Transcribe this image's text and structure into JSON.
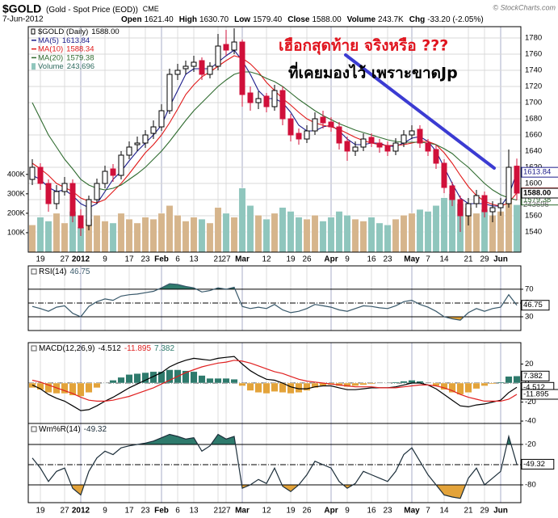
{
  "header": {
    "symbol": "$GOLD",
    "name": "(Gold - Spot Price (EOD))",
    "exchange": "CME",
    "date": "7-Jun-2012",
    "quote": [
      {
        "label": "Open",
        "value": "1621.40"
      },
      {
        "label": "High",
        "value": "1630.70"
      },
      {
        "label": "Low",
        "value": "1579.40"
      },
      {
        "label": "Close",
        "value": "1588.00"
      },
      {
        "label": "Volume",
        "value": "243.7K"
      },
      {
        "label": "Chg",
        "value": "-33.20 (-2.05%)"
      }
    ],
    "credit": "© StockCharts.com"
  },
  "annotations": [
    "เฮือกสุดท้าย จริงหรือ ???",
    "ที่เคยมองไว้ เพราะขาดJp"
  ],
  "chart_data": [
    {
      "type": "candlestick",
      "name": "$GOLD (Daily)",
      "last_label": "1588.00",
      "categories": [
        null,
        "19",
        null,
        null,
        "27",
        null,
        "2012",
        null,
        null,
        "9",
        null,
        null,
        "17",
        null,
        "23",
        null,
        "Feb",
        null,
        "6",
        null,
        "13",
        null,
        null,
        "21",
        "27",
        null,
        "Mar",
        null,
        null,
        "12",
        null,
        null,
        "19",
        null,
        "26",
        null,
        null,
        "Apr",
        null,
        "9",
        null,
        null,
        "16",
        null,
        "23",
        null,
        null,
        "May",
        null,
        "7",
        null,
        "14",
        null,
        null,
        "21",
        null,
        "29",
        null,
        "Jun",
        null,
        null
      ],
      "open": [
        1605,
        1620,
        1600,
        1575,
        1590,
        1600,
        1560,
        1548,
        1580,
        1600,
        1618,
        1610,
        1635,
        1648,
        1650,
        1662,
        1670,
        1690,
        1735,
        1742,
        1745,
        1752,
        1735,
        1745,
        1772,
        1765,
        1775,
        1712,
        1700,
        1708,
        1695,
        1715,
        1680,
        1662,
        1655,
        1665,
        1682,
        1676,
        1670,
        1652,
        1640,
        1645,
        1657,
        1650,
        1647,
        1640,
        1650,
        1660,
        1667,
        1650,
        1642,
        1625,
        1597,
        1580,
        1560,
        1575,
        1585,
        1565,
        1570,
        1575,
        1621.4
      ],
      "high": [
        1630,
        1625,
        1605,
        1598,
        1608,
        1605,
        1568,
        1585,
        1606,
        1622,
        1624,
        1640,
        1652,
        1658,
        1666,
        1678,
        1698,
        1742,
        1748,
        1752,
        1758,
        1756,
        1750,
        1785,
        1790,
        1792,
        1778,
        1720,
        1714,
        1712,
        1722,
        1720,
        1686,
        1668,
        1672,
        1688,
        1690,
        1682,
        1676,
        1658,
        1652,
        1662,
        1662,
        1655,
        1652,
        1656,
        1666,
        1672,
        1672,
        1655,
        1648,
        1630,
        1602,
        1585,
        1582,
        1592,
        1590,
        1578,
        1582,
        1642,
        1630.7
      ],
      "low": [
        1598,
        1592,
        1565,
        1568,
        1585,
        1552,
        1535,
        1542,
        1575,
        1594,
        1602,
        1605,
        1630,
        1640,
        1644,
        1655,
        1665,
        1686,
        1728,
        1735,
        1738,
        1728,
        1730,
        1740,
        1758,
        1760,
        1695,
        1690,
        1692,
        1688,
        1690,
        1672,
        1652,
        1648,
        1650,
        1660,
        1668,
        1664,
        1642,
        1628,
        1634,
        1640,
        1645,
        1638,
        1634,
        1635,
        1645,
        1655,
        1644,
        1634,
        1618,
        1588,
        1572,
        1540,
        1548,
        1570,
        1558,
        1552,
        1560,
        1570,
        1579.4
      ],
      "close": [
        1620,
        1600,
        1575,
        1590,
        1600,
        1560,
        1545,
        1580,
        1600,
        1615,
        1610,
        1635,
        1645,
        1650,
        1660,
        1670,
        1690,
        1735,
        1740,
        1745,
        1750,
        1735,
        1745,
        1770,
        1765,
        1775,
        1710,
        1700,
        1705,
        1695,
        1715,
        1680,
        1660,
        1655,
        1665,
        1680,
        1675,
        1670,
        1650,
        1640,
        1645,
        1655,
        1650,
        1645,
        1640,
        1650,
        1660,
        1665,
        1650,
        1640,
        1625,
        1595,
        1580,
        1560,
        1575,
        1585,
        1565,
        1570,
        1575,
        1620,
        1588
      ],
      "colors": {
        "up": "#000000",
        "down": "#d0103a"
      },
      "ylim": [
        1515,
        1794
      ],
      "yticks": [
        1540,
        1560,
        1580,
        1600,
        1620,
        1640,
        1660,
        1680,
        1700,
        1720,
        1740,
        1760,
        1780
      ],
      "grid": true,
      "overlays": [
        {
          "name": "MA(5)",
          "color": "#1c1c8a",
          "values": [
            1610,
            1605,
            1595,
            1590,
            1592,
            1585,
            1575,
            1570,
            1575,
            1590,
            1605,
            1615,
            1628,
            1640,
            1650,
            1660,
            1672,
            1695,
            1715,
            1735,
            1742,
            1742,
            1742,
            1750,
            1758,
            1765,
            1752,
            1735,
            1715,
            1705,
            1705,
            1700,
            1688,
            1672,
            1665,
            1665,
            1670,
            1672,
            1665,
            1655,
            1648,
            1648,
            1650,
            1650,
            1646,
            1646,
            1650,
            1656,
            1658,
            1652,
            1640,
            1620,
            1600,
            1582,
            1575,
            1575,
            1575,
            1572,
            1572,
            1585,
            1613.84
          ]
        },
        {
          "name": "MA(10)",
          "color": "#e01818",
          "values": [
            1625,
            1618,
            1610,
            1600,
            1595,
            1590,
            1582,
            1578,
            1576,
            1580,
            1590,
            1600,
            1612,
            1625,
            1638,
            1648,
            1660,
            1675,
            1692,
            1710,
            1722,
            1732,
            1738,
            1745,
            1752,
            1758,
            1755,
            1748,
            1738,
            1725,
            1715,
            1705,
            1697,
            1688,
            1680,
            1675,
            1672,
            1670,
            1667,
            1662,
            1657,
            1653,
            1650,
            1648,
            1647,
            1647,
            1648,
            1650,
            1652,
            1652,
            1648,
            1638,
            1625,
            1610,
            1596,
            1585,
            1578,
            1574,
            1572,
            1576,
            1588.34
          ]
        },
        {
          "name": "MA(20)",
          "color": "#2f6b2f",
          "values": [
            1700,
            1680,
            1660,
            1645,
            1630,
            1618,
            1605,
            1598,
            1594,
            1592,
            1594,
            1598,
            1605,
            1612,
            1620,
            1630,
            1640,
            1652,
            1665,
            1678,
            1690,
            1700,
            1710,
            1720,
            1728,
            1735,
            1738,
            1738,
            1735,
            1730,
            1726,
            1720,
            1712,
            1704,
            1697,
            1690,
            1684,
            1679,
            1674,
            1670,
            1666,
            1663,
            1660,
            1657,
            1654,
            1652,
            1651,
            1651,
            1651,
            1650,
            1648,
            1643,
            1637,
            1628,
            1620,
            1610,
            1600,
            1592,
            1586,
            1582,
            1579.38
          ]
        }
      ],
      "volume": {
        "name": "Volume",
        "last_label": "243,696",
        "colors": {
          "up": "#d6b58c",
          "down": "#8fc6bd"
        },
        "ylim": [
          0,
          1160000
        ],
        "yticks": [
          {
            "value": 100000,
            "label": "100K"
          },
          {
            "value": 200000,
            "label": "200K"
          },
          {
            "value": 300000,
            "label": "300K"
          },
          {
            "value": 400000,
            "label": "400K"
          }
        ],
        "values": [
          140000,
          180000,
          160000,
          200000,
          150000,
          210000,
          130000,
          170000,
          190000,
          160000,
          150000,
          200000,
          170000,
          150000,
          180000,
          170000,
          200000,
          240000,
          190000,
          160000,
          180000,
          170000,
          150000,
          230000,
          200000,
          180000,
          330000,
          240000,
          190000,
          170000,
          200000,
          230000,
          210000,
          180000,
          170000,
          190000,
          160000,
          180000,
          210000,
          190000,
          170000,
          160000,
          180000,
          150000,
          140000,
          170000,
          190000,
          200000,
          220000,
          210000,
          240000,
          280000,
          300000,
          250000,
          230000,
          200000,
          220000,
          190000,
          210000,
          280000,
          243696
        ]
      }
    },
    {
      "type": "line",
      "name": "RSI(14)",
      "ylim": [
        10,
        104
      ],
      "yticks": [
        70,
        50,
        30
      ],
      "bands": {
        "upper": 70,
        "lower": 30,
        "upper_color": "#2e7a6c",
        "lower_color": "#e3a33a"
      },
      "midline": 50,
      "series": [
        {
          "color": "#38586a",
          "values": [
            45,
            42,
            38,
            44,
            46,
            35,
            30,
            45,
            52,
            56,
            54,
            60,
            62,
            63,
            65,
            67,
            72,
            78,
            77,
            74,
            72,
            66,
            68,
            72,
            70,
            73,
            45,
            42,
            44,
            42,
            48,
            40,
            36,
            38,
            42,
            48,
            46,
            44,
            40,
            38,
            42,
            46,
            45,
            43,
            42,
            46,
            52,
            54,
            48,
            44,
            38,
            30,
            27,
            25,
            36,
            42,
            38,
            42,
            44,
            62,
            46.75
          ]
        }
      ]
    },
    {
      "type": "line",
      "name": "MACD(12,26,9)",
      "ylim": [
        -42.5,
        42.5
      ],
      "yticks": [
        20,
        0,
        -20,
        -40
      ],
      "midline": 0,
      "series": [
        {
          "style": "histogram",
          "color": "#2e7a6c",
          "negative_color": "#e3a33a",
          "values": [
            -5,
            -7,
            -10,
            -11,
            -11,
            -13,
            -14,
            -10,
            -5,
            0,
            3,
            6,
            9,
            10,
            11,
            12,
            12,
            14,
            14,
            13,
            12,
            8,
            5,
            5,
            5,
            4,
            -3,
            -8,
            -10,
            -11,
            -9,
            -10,
            -11,
            -10,
            -8,
            -5,
            -3,
            -2,
            -3,
            -4,
            -3,
            -2,
            -1,
            0,
            0,
            1,
            2,
            3,
            2,
            0,
            -3,
            -7,
            -10,
            -12,
            -10,
            -6,
            -3,
            -1,
            1,
            7,
            7.382
          ]
        },
        {
          "color": "#000000",
          "values": [
            -2,
            -6,
            -12,
            -16,
            -19,
            -24,
            -29,
            -28,
            -24,
            -19,
            -15,
            -10,
            -5,
            -1,
            3,
            7,
            11,
            17,
            21,
            24,
            26,
            25,
            24,
            26,
            27,
            28,
            20,
            13,
            8,
            4,
            3,
            0,
            -4,
            -6,
            -6,
            -4,
            -3,
            -3,
            -5,
            -7,
            -7,
            -6,
            -5,
            -5,
            -5,
            -4,
            -2,
            0,
            0,
            -2,
            -6,
            -12,
            -18,
            -24,
            -25,
            -23,
            -22,
            -20,
            -18,
            -10,
            -4.512
          ]
        },
        {
          "color": "#e02020",
          "values": [
            3,
            1,
            -2,
            -5,
            -8,
            -11,
            -15,
            -18,
            -19,
            -19,
            -18,
            -16,
            -14,
            -11,
            -8,
            -5,
            -1,
            3,
            7,
            11,
            14,
            17,
            19,
            21,
            22,
            24,
            23,
            21,
            18,
            15,
            12,
            10,
            7,
            4,
            2,
            1,
            0,
            -1,
            -2,
            -3,
            -4,
            -4,
            -4,
            -5,
            -5,
            -5,
            -4,
            -3,
            -2,
            -2,
            -3,
            -5,
            -8,
            -12,
            -15,
            -17,
            -19,
            -19,
            -19,
            -17,
            -11.895
          ]
        }
      ],
      "legend_order": [
        1,
        2,
        0
      ]
    },
    {
      "type": "line",
      "name": "Wm%R(14)",
      "ylim": [
        -106.4,
        11.2
      ],
      "yticks": [
        -20,
        -80
      ],
      "bands": {
        "upper": -20,
        "lower": -80,
        "upper_color": "#2e7a6c",
        "lower_color": "#e3a33a"
      },
      "midline": -50,
      "categories": [
        null,
        "19",
        null,
        null,
        "27",
        null,
        "2012",
        null,
        null,
        "9",
        null,
        null,
        "17",
        null,
        "23",
        null,
        "Feb",
        null,
        "6",
        null,
        "13",
        null,
        null,
        "21",
        "27",
        null,
        "Mar",
        null,
        null,
        "12",
        null,
        null,
        "19",
        null,
        "26",
        null,
        null,
        "Apr",
        null,
        "9",
        null,
        null,
        "16",
        null,
        "23",
        null,
        null,
        "May",
        null,
        "7",
        null,
        "14",
        null,
        null,
        "21",
        null,
        "29",
        null,
        "Jun",
        null,
        null
      ],
      "series": [
        {
          "color": "#1c2e3a",
          "values": [
            -40,
            -55,
            -75,
            -60,
            -55,
            -85,
            -95,
            -60,
            -40,
            -30,
            -35,
            -25,
            -22,
            -20,
            -18,
            -15,
            -10,
            -5,
            -8,
            -12,
            -10,
            -30,
            -22,
            -5,
            -12,
            -8,
            -85,
            -80,
            -72,
            -78,
            -55,
            -82,
            -90,
            -80,
            -65,
            -45,
            -50,
            -55,
            -75,
            -85,
            -78,
            -60,
            -65,
            -70,
            -75,
            -60,
            -35,
            -25,
            -45,
            -65,
            -80,
            -95,
            -98,
            -100,
            -70,
            -55,
            -80,
            -70,
            -60,
            -8,
            -49.32
          ]
        }
      ]
    }
  ]
}
